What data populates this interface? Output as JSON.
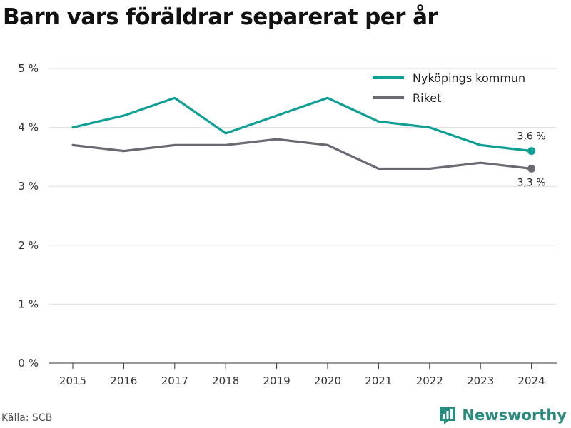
{
  "title": "Barn vars föräldrar separerat per år",
  "source": "Källa: SCB",
  "brand": "Newsworthy",
  "colors": {
    "accent": "#0f9f94",
    "secondary": "#6b6a73",
    "brand": "#2a8c7e"
  },
  "chart_data": {
    "type": "line",
    "x": [
      "2015",
      "2016",
      "2017",
      "2018",
      "2019",
      "2020",
      "2021",
      "2022",
      "2023",
      "2024"
    ],
    "ylim": [
      0,
      5
    ],
    "yticks": [
      0,
      1,
      2,
      3,
      4,
      5
    ],
    "ytick_labels": [
      "0 %",
      "1 %",
      "2 %",
      "3 %",
      "4 %",
      "5 %"
    ],
    "grid": true,
    "legend_position": "top-right",
    "series": [
      {
        "name": "Nyköpings kommun",
        "color": "#0f9f94",
        "values": [
          4.0,
          4.2,
          4.5,
          3.9,
          4.2,
          4.5,
          4.1,
          4.0,
          3.7,
          3.6
        ],
        "end_label": "3,6 %"
      },
      {
        "name": "Riket",
        "color": "#6b6a73",
        "values": [
          3.7,
          3.6,
          3.7,
          3.7,
          3.8,
          3.7,
          3.3,
          3.3,
          3.4,
          3.3
        ],
        "end_label": "3,3 %"
      }
    ]
  }
}
